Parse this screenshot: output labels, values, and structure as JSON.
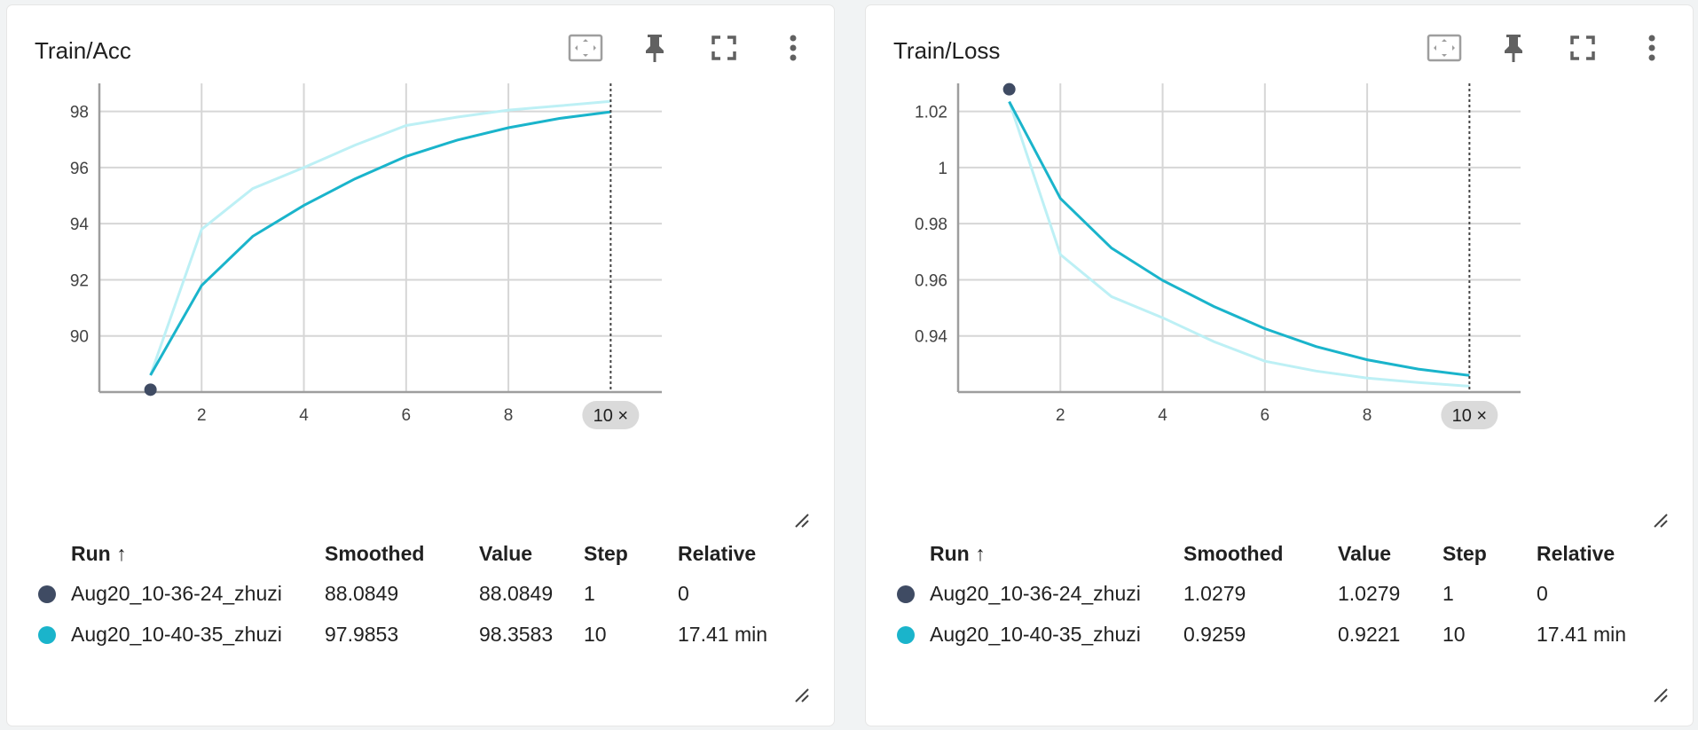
{
  "toolbar_icons": [
    "fit-domain-icon",
    "pin-icon",
    "fullscreen-icon",
    "more-vert-icon"
  ],
  "table_headers": {
    "run": "Run",
    "sort_arrow": "↑",
    "smoothed": "Smoothed",
    "value": "Value",
    "step": "Step",
    "relative": "Relative"
  },
  "runs": [
    {
      "name": "Aug20_10-36-24_zhuzi",
      "color": "#3f4b63"
    },
    {
      "name": "Aug20_10-40-35_zhuzi",
      "color": "#1ab4cb"
    }
  ],
  "colors": {
    "smoothed_line": "#1ab4cb",
    "raw_line": "#bdf0f5",
    "run_0": "#3f4b63"
  },
  "cards": [
    {
      "title": "Train/Acc",
      "cursor_label": "10 ×",
      "rows": [
        {
          "smoothed": "88.0849",
          "value": "88.0849",
          "step": "1",
          "relative": "0"
        },
        {
          "smoothed": "97.9853",
          "value": "98.3583",
          "step": "10",
          "relative": "17.41 min"
        }
      ]
    },
    {
      "title": "Train/Loss",
      "cursor_label": "10 ×",
      "rows": [
        {
          "smoothed": "1.0279",
          "value": "1.0279",
          "step": "1",
          "relative": "0"
        },
        {
          "smoothed": "0.9259",
          "value": "0.9221",
          "step": "10",
          "relative": "17.41 min"
        }
      ]
    }
  ],
  "chart_data": [
    {
      "type": "line",
      "title": "Train/Acc",
      "xlim": [
        0,
        11
      ],
      "ylim": [
        88,
        99
      ],
      "x_ticks": [
        2,
        4,
        6,
        8
      ],
      "y_ticks": [
        90,
        92,
        94,
        96,
        98
      ],
      "y_tick_labels": [
        "90",
        "92",
        "94",
        "96",
        "98"
      ],
      "cursor_x": 10,
      "grid": true,
      "series": [
        {
          "name": "Aug20_10-36-24_zhuzi",
          "x": [
            1
          ],
          "y": [
            88.0849
          ],
          "style": "point",
          "color": "#3f4b63"
        },
        {
          "name": "Aug20_10-40-35_zhuzi",
          "style": "raw",
          "color": "#bdf0f5",
          "x": [
            1,
            2,
            3,
            4,
            5,
            6,
            7,
            8,
            9,
            10
          ],
          "y": [
            88.6,
            93.8,
            95.25,
            96.0,
            96.8,
            97.5,
            97.8,
            98.05,
            98.2,
            98.3583
          ]
        },
        {
          "name": "Aug20_10-40-35_zhuzi",
          "style": "smoothed",
          "color": "#1ab4cb",
          "x": [
            1,
            2,
            3,
            4,
            5,
            6,
            7,
            8,
            9,
            10
          ],
          "y": [
            88.6,
            91.8,
            93.55,
            94.65,
            95.6,
            96.4,
            96.98,
            97.42,
            97.75,
            97.9853
          ]
        }
      ]
    },
    {
      "type": "line",
      "title": "Train/Loss",
      "xlim": [
        0,
        11
      ],
      "ylim": [
        0.92,
        1.03
      ],
      "x_ticks": [
        2,
        4,
        6,
        8
      ],
      "y_ticks": [
        0.94,
        0.96,
        0.98,
        1.0,
        1.02
      ],
      "y_tick_labels": [
        "0.94",
        "0.96",
        "0.98",
        "1",
        "1.02"
      ],
      "cursor_x": 10,
      "grid": true,
      "series": [
        {
          "name": "Aug20_10-36-24_zhuzi",
          "x": [
            1
          ],
          "y": [
            1.0279
          ],
          "style": "point",
          "color": "#3f4b63"
        },
        {
          "name": "Aug20_10-40-35_zhuzi",
          "style": "raw",
          "color": "#bdf0f5",
          "x": [
            1,
            2,
            3,
            4,
            5,
            6,
            7,
            8,
            9,
            10
          ],
          "y": [
            1.0235,
            0.969,
            0.954,
            0.9465,
            0.938,
            0.931,
            0.9275,
            0.925,
            0.9234,
            0.9221
          ]
        },
        {
          "name": "Aug20_10-40-35_zhuzi",
          "style": "smoothed",
          "color": "#1ab4cb",
          "x": [
            1,
            2,
            3,
            4,
            5,
            6,
            7,
            8,
            9,
            10
          ],
          "y": [
            1.0235,
            0.989,
            0.9713,
            0.9598,
            0.9505,
            0.9426,
            0.9362,
            0.9315,
            0.9282,
            0.9259
          ]
        }
      ]
    }
  ]
}
